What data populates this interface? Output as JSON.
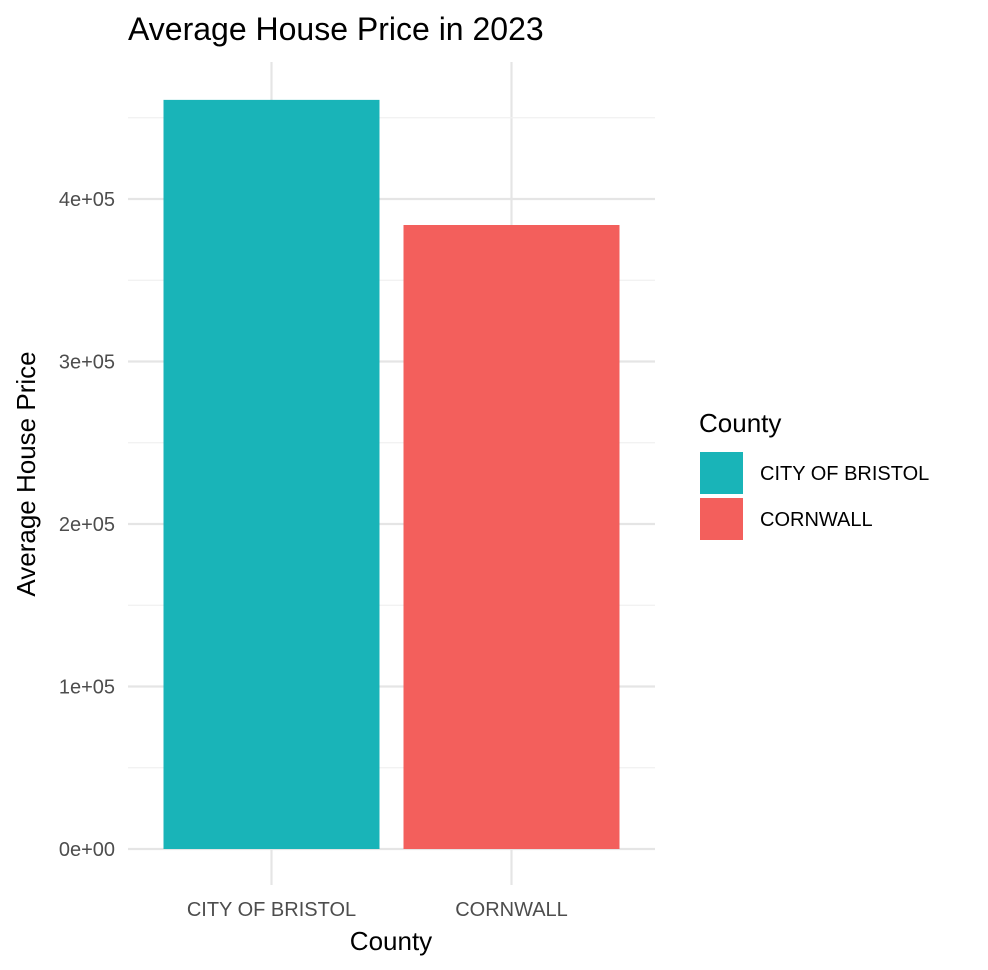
{
  "chart_data": {
    "type": "bar",
    "title": "Average House Price in 2023",
    "xlabel": "County",
    "ylabel": "Average House Price",
    "categories": [
      "CITY OF BRISTOL",
      "CORNWALL"
    ],
    "values": [
      461000,
      384000
    ],
    "colors": [
      "#19B4B8",
      "#F35F5C"
    ],
    "ylim": [
      0,
      480000
    ],
    "y_ticks": [
      0,
      100000,
      200000,
      300000,
      400000
    ],
    "y_tick_labels": [
      "0e+00",
      "1e+05",
      "2e+05",
      "3e+05",
      "4e+05"
    ],
    "grid": true,
    "legend": {
      "title": "County",
      "position": "right",
      "entries": [
        {
          "label": "CITY OF BRISTOL",
          "color": "#19B4B8"
        },
        {
          "label": "CORNWALL",
          "color": "#F35F5C"
        }
      ]
    }
  }
}
